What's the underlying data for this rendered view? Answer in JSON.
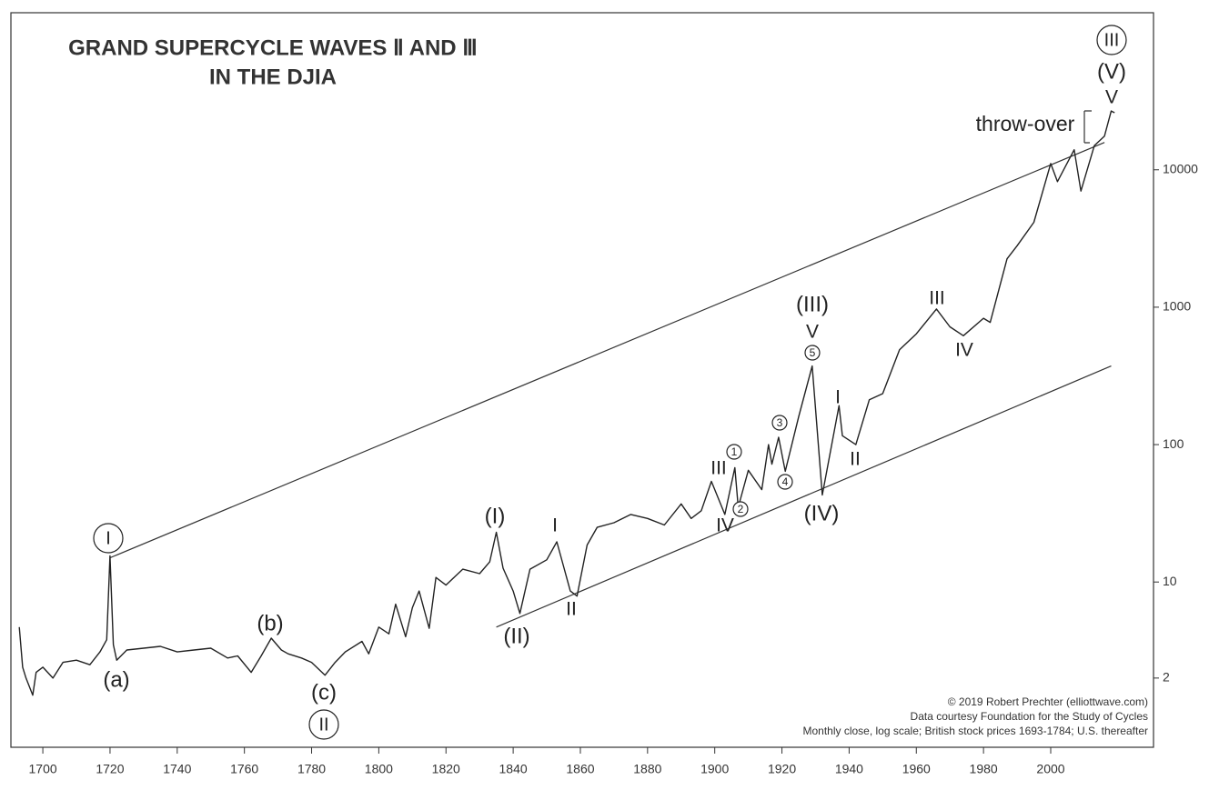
{
  "chart_data": {
    "type": "line",
    "title": "GRAND SUPERCYCLE WAVES Ⅱ AND Ⅲ",
    "subtitle": "IN THE DJIA",
    "notes": [
      "© 2019 Robert Prechter (elliottwave.com)",
      "Data courtesy Foundation for the Study of Cycles",
      "Monthly close, log scale; British stock prices 1693-1784; U.S. thereafter"
    ],
    "log_scale": true,
    "color": "#222222",
    "x": [
      1693,
      1694,
      1695,
      1697,
      1698,
      1700,
      1703,
      1706,
      1710,
      1714,
      1717,
      1719,
      1720,
      1721,
      1722,
      1725,
      1730,
      1735,
      1740,
      1745,
      1750,
      1755,
      1758,
      1762,
      1765,
      1768,
      1771,
      1773,
      1777,
      1780,
      1784,
      1787,
      1790,
      1795,
      1797,
      1800,
      1803,
      1805,
      1808,
      1810,
      1812,
      1815,
      1817,
      1820,
      1825,
      1830,
      1833,
      1835,
      1837,
      1840,
      1842,
      1845,
      1850,
      1853,
      1855,
      1857,
      1859,
      1862,
      1865,
      1870,
      1875,
      1880,
      1885,
      1890,
      1893,
      1896,
      1899,
      1903,
      1906,
      1907,
      1910,
      1914,
      1916,
      1917,
      1919,
      1921,
      1925,
      1929,
      1932,
      1937,
      1938,
      1942,
      1946,
      1950,
      1955,
      1960,
      1966,
      1970,
      1974,
      1980,
      1982,
      1987,
      1990,
      1995,
      2000,
      2002,
      2007,
      2009,
      2013,
      2016,
      2018,
      2019
    ],
    "values": [
      4.7,
      2.4,
      2.0,
      1.5,
      2.2,
      2.4,
      2.0,
      2.6,
      2.7,
      2.5,
      3.1,
      3.8,
      15.5,
      3.5,
      2.7,
      3.2,
      3.3,
      3.4,
      3.1,
      3.2,
      3.3,
      2.8,
      2.9,
      2.2,
      2.9,
      3.9,
      3.2,
      3.0,
      2.8,
      2.6,
      2.1,
      2.6,
      3.1,
      3.7,
      3.0,
      4.7,
      4.2,
      6.9,
      4.0,
      6.5,
      8.6,
      4.6,
      10.8,
      9.5,
      12.4,
      11.5,
      14,
      23,
      12.6,
      8.6,
      5.9,
      12.4,
      14.5,
      19.6,
      13,
      8.6,
      7.9,
      18.6,
      25,
      27,
      31,
      29,
      26,
      37,
      29,
      33,
      54,
      31,
      68,
      35,
      65,
      47,
      100,
      72,
      113,
      64,
      160,
      373,
      43,
      192,
      116,
      100,
      212,
      235,
      490,
      640,
      970,
      720,
      620,
      830,
      775,
      2250,
      2800,
      4150,
      11100,
      8200,
      14000,
      7000,
      15000,
      17600,
      26800,
      26000
    ],
    "channel_lines": [
      {
        "x": [
          1720,
          2016
        ],
        "values": [
          15,
          15800
        ]
      },
      {
        "x": [
          1835,
          2018
        ],
        "values": [
          4.7,
          373
        ]
      }
    ],
    "xlim": [
      1690.5,
      2030.6
    ],
    "ylim": [
      0.627,
      139000
    ],
    "xticks": [
      1700,
      1720,
      1740,
      1760,
      1780,
      1800,
      1820,
      1840,
      1860,
      1880,
      1900,
      1920,
      1940,
      1960,
      1980,
      2000
    ],
    "yticks": [
      2,
      10,
      100,
      1000,
      10000
    ],
    "annotations": [
      {
        "text": "I",
        "circled": true
      },
      {
        "text": "(a)"
      },
      {
        "text": "(b)"
      },
      {
        "text": "(c)"
      },
      {
        "text": "II",
        "circled": true
      },
      {
        "text": "(I)"
      },
      {
        "text": "(II)"
      },
      {
        "text": "I"
      },
      {
        "text": "II"
      },
      {
        "text": "III"
      },
      {
        "text": "IV"
      },
      {
        "text": "1",
        "circled": true
      },
      {
        "text": "2",
        "circled": true
      },
      {
        "text": "3",
        "circled": true
      },
      {
        "text": "4",
        "circled": true
      },
      {
        "text": "(III)"
      },
      {
        "text": "V"
      },
      {
        "text": "5",
        "circled": true
      },
      {
        "text": "(IV)"
      },
      {
        "text": "I"
      },
      {
        "text": "II"
      },
      {
        "text": "III"
      },
      {
        "text": "IV"
      },
      {
        "text": "throw-over"
      },
      {
        "text": "III",
        "circled": true
      },
      {
        "text": "(V)"
      },
      {
        "text": "V"
      }
    ]
  }
}
